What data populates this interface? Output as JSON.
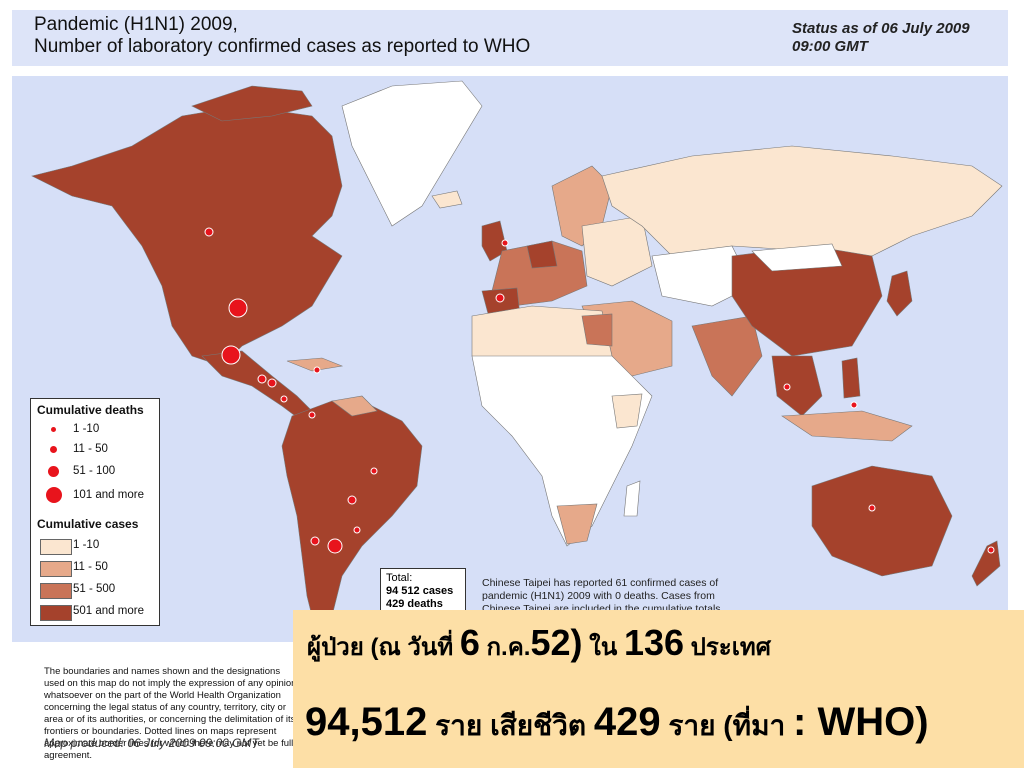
{
  "header": {
    "title_line1": "Pandemic (H1N1) 2009,",
    "title_line2": "Number of  laboratory confirmed cases as reported to WHO",
    "status_line1": "Status as of 06 July 2009",
    "status_line2": "09:00 GMT"
  },
  "colors": {
    "ocean": "#d6dff7",
    "no_cases": "#ffffff",
    "cases_1_10": "#fbe6d0",
    "cases_11_50": "#e6a98a",
    "cases_51_500": "#c97458",
    "cases_501_more": "#a5422c",
    "death_dot": "#e8141c",
    "thai_panel": "#fddfa6"
  },
  "legend": {
    "deaths_title": "Cumulative deaths",
    "deaths": [
      "1 -10",
      "11 - 50",
      "51 - 100",
      "101 and more"
    ],
    "cases_title": "Cumulative cases",
    "cases": [
      "1 -10",
      "11 - 50",
      "51 - 500",
      "501 and more"
    ]
  },
  "total": {
    "label": "Total:",
    "cases": "94 512 cases",
    "deaths": "429 deaths"
  },
  "taipei_note": "Chinese Taipei has reported 61 confirmed cases of pandemic (H1N1) 2009 with 0 deaths. Cases from Chinese Taipei are included in the cumulative totals.",
  "disclaimer": "The boundaries and names shown and the designations used on this map do not imply the expression of any opinion whatsoever on the part of the World Health Organization concerning the legal status of any country, territory, city or area or of its authorities, or concerning the delimitation of its frontiers or boundaries. Dotted lines on maps represent approximate border lines for which there may not yet be full agreement.",
  "produced": "Map produced: 06 July 2009 09:00 GMT",
  "thai": {
    "l1_a": "ผู้ป่วย (ณ วันที่ ",
    "l1_b": "6",
    "l1_c": " ก.ค.",
    "l1_d": "52)",
    "l1_e": " ใน ",
    "l1_f": "136",
    "l1_g": " ประเทศ",
    "l2_a": "94,512",
    "l2_b": " ราย เสียชีวิต ",
    "l2_c": "429",
    "l2_d": "  ราย  (ที่มา ",
    "l2_e": ": WHO)"
  },
  "map_icons": [
    "death-dot-small",
    "death-dot-medium",
    "death-dot-large"
  ]
}
